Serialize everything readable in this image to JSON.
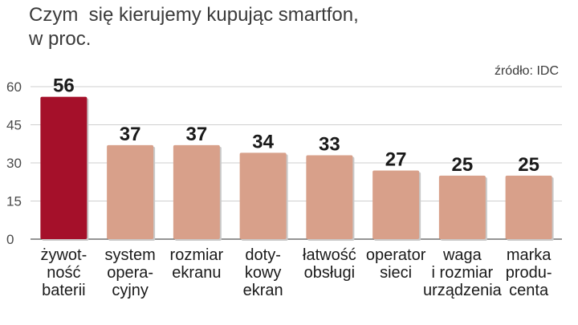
{
  "title_lines": [
    "Czym  się kierujemy kupując smartfon,",
    "w proc."
  ],
  "source": "źródło: IDC",
  "colors": {
    "highlight": "#a5102a",
    "bar": "#d8a08a",
    "gridline": "#cfcfcf",
    "axis": "#555555",
    "shadow": "#c9c9c9"
  },
  "chart_data": {
    "type": "bar",
    "categories": [
      [
        "żywot-",
        "ność",
        "baterii"
      ],
      [
        "system",
        "opera-",
        "cyjny"
      ],
      [
        "rozmiar",
        "ekranu"
      ],
      [
        "doty-",
        "kowy",
        "ekran"
      ],
      [
        "łatwość",
        "obsługi"
      ],
      [
        "operator",
        "sieci"
      ],
      [
        "waga",
        "i rozmiar",
        "urządzenia"
      ],
      [
        "marka",
        "produ-",
        "centa"
      ]
    ],
    "values": [
      56,
      37,
      37,
      34,
      33,
      27,
      25,
      25
    ],
    "highlight_index": 0,
    "yticks": [
      0,
      15,
      30,
      45,
      60
    ],
    "ylim": [
      0,
      60
    ],
    "grid": true
  }
}
